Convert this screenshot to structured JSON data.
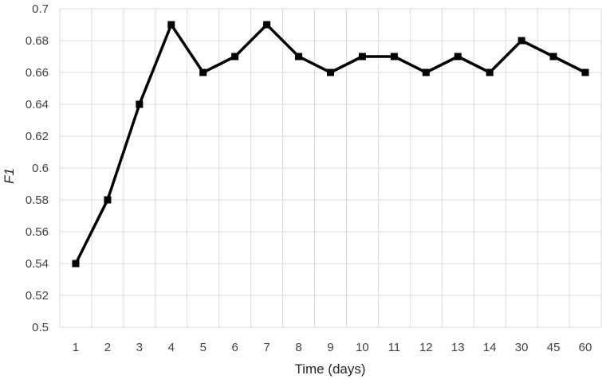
{
  "chart_data": {
    "type": "line",
    "categories": [
      "1",
      "2",
      "3",
      "4",
      "5",
      "6",
      "7",
      "8",
      "9",
      "10",
      "11",
      "12",
      "13",
      "14",
      "30",
      "45",
      "60"
    ],
    "series": [
      {
        "values": [
          0.54,
          0.58,
          0.64,
          0.69,
          0.66,
          0.67,
          0.69,
          0.67,
          0.66,
          0.67,
          0.67,
          0.66,
          0.67,
          0.66,
          0.68,
          0.67,
          0.66
        ]
      }
    ],
    "xlabel": "Time (days)",
    "ylabel": "F1",
    "ylim": [
      0.5,
      0.7
    ],
    "yticks": [
      "0.5",
      "0.52",
      "0.54",
      "0.56",
      "0.58",
      "0.6",
      "0.62",
      "0.64",
      "0.66",
      "0.68",
      "0.7"
    ],
    "grid": true,
    "marker": "square",
    "colors": {
      "line": "#000000",
      "grid": "#d9d9d9",
      "text": "#404040"
    }
  }
}
